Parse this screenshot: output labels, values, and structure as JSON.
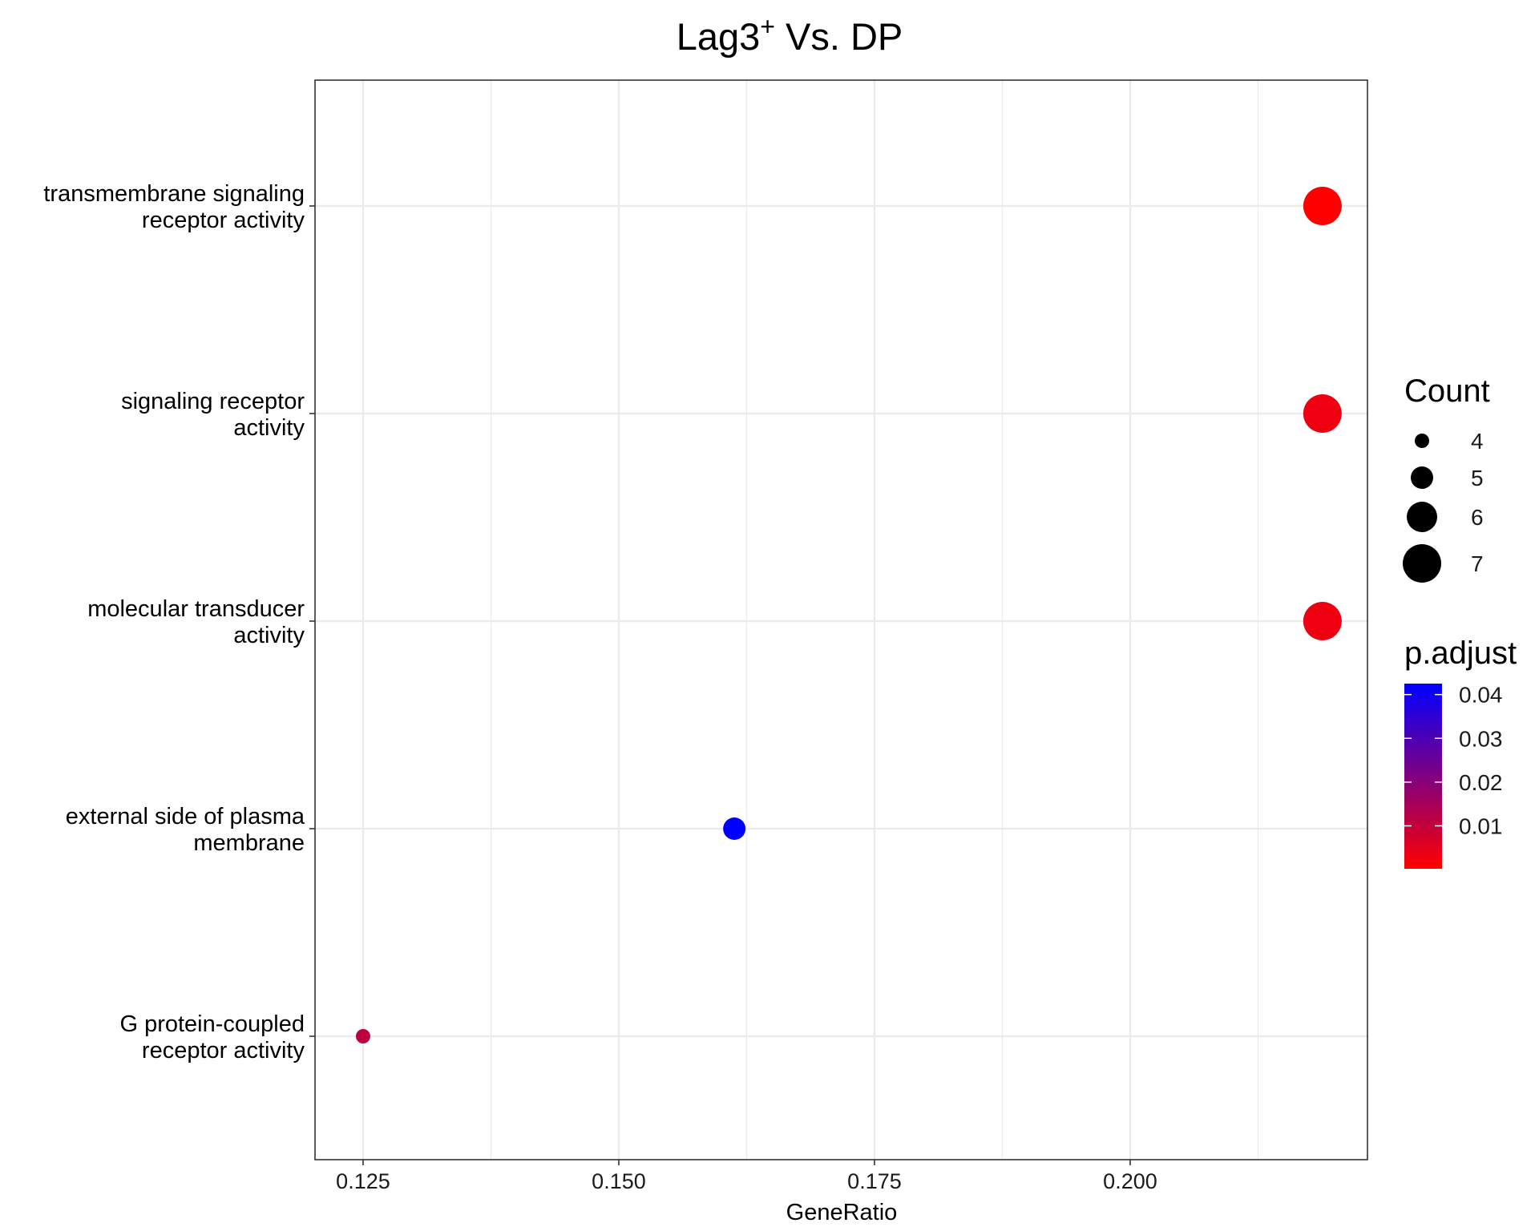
{
  "chart_data": {
    "type": "scatter",
    "title": "Lag3",
    "title_superscript": "+",
    "title_suffix": " Vs. DP",
    "xlabel": "GeneRatio",
    "ylabel": "",
    "xlim": [
      0.1203,
      0.2232
    ],
    "x_ticks": [
      "0.125",
      "0.150",
      "0.175",
      "0.200"
    ],
    "x_tick_values": [
      0.125,
      0.15,
      0.175,
      0.2
    ],
    "categories": [
      [
        "transmembrane signaling",
        "receptor activity"
      ],
      [
        "signaling receptor",
        "activity"
      ],
      [
        "molecular transducer",
        "activity"
      ],
      [
        "external side of plasma",
        "membrane"
      ],
      [
        "G protein-coupled",
        "receptor activity"
      ]
    ],
    "points": [
      {
        "category_index": 0,
        "x": 0.2188,
        "count": 7,
        "p_adjust": 0.0002
      },
      {
        "category_index": 1,
        "x": 0.2188,
        "count": 7,
        "p_adjust": 0.0028
      },
      {
        "category_index": 2,
        "x": 0.2188,
        "count": 7,
        "p_adjust": 0.0028
      },
      {
        "category_index": 3,
        "x": 0.1613,
        "count": 5,
        "p_adjust": 0.0425
      },
      {
        "category_index": 4,
        "x": 0.125,
        "count": 4,
        "p_adjust": 0.011
      }
    ],
    "legend_size": {
      "title": "Count",
      "labels": [
        "4",
        "5",
        "6",
        "7"
      ],
      "values": [
        4,
        5,
        6,
        7
      ]
    },
    "legend_color": {
      "title": "p.adjust",
      "labels": [
        "0.04",
        "0.03",
        "0.02",
        "0.01"
      ],
      "values": [
        0.04,
        0.03,
        0.02,
        0.01
      ],
      "range": [
        0.0002,
        0.0425
      ],
      "low_color": "#FF0000",
      "high_color": "#0000FF"
    },
    "grid": true,
    "legend_position": "right"
  }
}
